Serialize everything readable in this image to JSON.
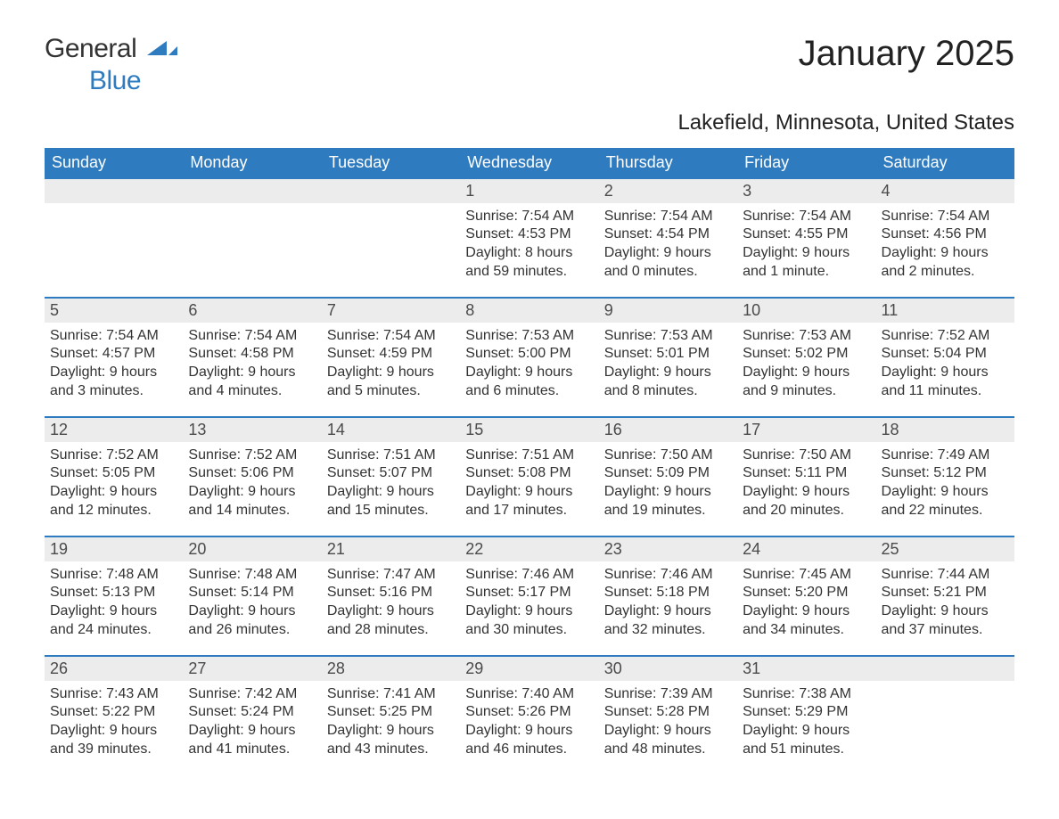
{
  "brand": {
    "word1": "General",
    "word2": "Blue",
    "mark_color": "#2f7bbf"
  },
  "title": "January 2025",
  "location": "Lakefield, Minnesota, United States",
  "colors": {
    "header_bg": "#2f7bbf",
    "header_text": "#ffffff",
    "daynum_bg": "#ececec",
    "daynum_border": "#2f7bbf",
    "body_text": "#333333",
    "page_bg": "#ffffff"
  },
  "typography": {
    "title_fontsize": 40,
    "subtitle_fontsize": 24,
    "header_fontsize": 18,
    "daynum_fontsize": 18,
    "detail_fontsize": 16,
    "font_family": "Arial"
  },
  "calendar": {
    "type": "table",
    "day_headers": [
      "Sunday",
      "Monday",
      "Tuesday",
      "Wednesday",
      "Thursday",
      "Friday",
      "Saturday"
    ],
    "weeks": [
      [
        null,
        null,
        null,
        {
          "day": "1",
          "sunrise": "Sunrise: 7:54 AM",
          "sunset": "Sunset: 4:53 PM",
          "daylight": "Daylight: 8 hours and 59 minutes."
        },
        {
          "day": "2",
          "sunrise": "Sunrise: 7:54 AM",
          "sunset": "Sunset: 4:54 PM",
          "daylight": "Daylight: 9 hours and 0 minutes."
        },
        {
          "day": "3",
          "sunrise": "Sunrise: 7:54 AM",
          "sunset": "Sunset: 4:55 PM",
          "daylight": "Daylight: 9 hours and 1 minute."
        },
        {
          "day": "4",
          "sunrise": "Sunrise: 7:54 AM",
          "sunset": "Sunset: 4:56 PM",
          "daylight": "Daylight: 9 hours and 2 minutes."
        }
      ],
      [
        {
          "day": "5",
          "sunrise": "Sunrise: 7:54 AM",
          "sunset": "Sunset: 4:57 PM",
          "daylight": "Daylight: 9 hours and 3 minutes."
        },
        {
          "day": "6",
          "sunrise": "Sunrise: 7:54 AM",
          "sunset": "Sunset: 4:58 PM",
          "daylight": "Daylight: 9 hours and 4 minutes."
        },
        {
          "day": "7",
          "sunrise": "Sunrise: 7:54 AM",
          "sunset": "Sunset: 4:59 PM",
          "daylight": "Daylight: 9 hours and 5 minutes."
        },
        {
          "day": "8",
          "sunrise": "Sunrise: 7:53 AM",
          "sunset": "Sunset: 5:00 PM",
          "daylight": "Daylight: 9 hours and 6 minutes."
        },
        {
          "day": "9",
          "sunrise": "Sunrise: 7:53 AM",
          "sunset": "Sunset: 5:01 PM",
          "daylight": "Daylight: 9 hours and 8 minutes."
        },
        {
          "day": "10",
          "sunrise": "Sunrise: 7:53 AM",
          "sunset": "Sunset: 5:02 PM",
          "daylight": "Daylight: 9 hours and 9 minutes."
        },
        {
          "day": "11",
          "sunrise": "Sunrise: 7:52 AM",
          "sunset": "Sunset: 5:04 PM",
          "daylight": "Daylight: 9 hours and 11 minutes."
        }
      ],
      [
        {
          "day": "12",
          "sunrise": "Sunrise: 7:52 AM",
          "sunset": "Sunset: 5:05 PM",
          "daylight": "Daylight: 9 hours and 12 minutes."
        },
        {
          "day": "13",
          "sunrise": "Sunrise: 7:52 AM",
          "sunset": "Sunset: 5:06 PM",
          "daylight": "Daylight: 9 hours and 14 minutes."
        },
        {
          "day": "14",
          "sunrise": "Sunrise: 7:51 AM",
          "sunset": "Sunset: 5:07 PM",
          "daylight": "Daylight: 9 hours and 15 minutes."
        },
        {
          "day": "15",
          "sunrise": "Sunrise: 7:51 AM",
          "sunset": "Sunset: 5:08 PM",
          "daylight": "Daylight: 9 hours and 17 minutes."
        },
        {
          "day": "16",
          "sunrise": "Sunrise: 7:50 AM",
          "sunset": "Sunset: 5:09 PM",
          "daylight": "Daylight: 9 hours and 19 minutes."
        },
        {
          "day": "17",
          "sunrise": "Sunrise: 7:50 AM",
          "sunset": "Sunset: 5:11 PM",
          "daylight": "Daylight: 9 hours and 20 minutes."
        },
        {
          "day": "18",
          "sunrise": "Sunrise: 7:49 AM",
          "sunset": "Sunset: 5:12 PM",
          "daylight": "Daylight: 9 hours and 22 minutes."
        }
      ],
      [
        {
          "day": "19",
          "sunrise": "Sunrise: 7:48 AM",
          "sunset": "Sunset: 5:13 PM",
          "daylight": "Daylight: 9 hours and 24 minutes."
        },
        {
          "day": "20",
          "sunrise": "Sunrise: 7:48 AM",
          "sunset": "Sunset: 5:14 PM",
          "daylight": "Daylight: 9 hours and 26 minutes."
        },
        {
          "day": "21",
          "sunrise": "Sunrise: 7:47 AM",
          "sunset": "Sunset: 5:16 PM",
          "daylight": "Daylight: 9 hours and 28 minutes."
        },
        {
          "day": "22",
          "sunrise": "Sunrise: 7:46 AM",
          "sunset": "Sunset: 5:17 PM",
          "daylight": "Daylight: 9 hours and 30 minutes."
        },
        {
          "day": "23",
          "sunrise": "Sunrise: 7:46 AM",
          "sunset": "Sunset: 5:18 PM",
          "daylight": "Daylight: 9 hours and 32 minutes."
        },
        {
          "day": "24",
          "sunrise": "Sunrise: 7:45 AM",
          "sunset": "Sunset: 5:20 PM",
          "daylight": "Daylight: 9 hours and 34 minutes."
        },
        {
          "day": "25",
          "sunrise": "Sunrise: 7:44 AM",
          "sunset": "Sunset: 5:21 PM",
          "daylight": "Daylight: 9 hours and 37 minutes."
        }
      ],
      [
        {
          "day": "26",
          "sunrise": "Sunrise: 7:43 AM",
          "sunset": "Sunset: 5:22 PM",
          "daylight": "Daylight: 9 hours and 39 minutes."
        },
        {
          "day": "27",
          "sunrise": "Sunrise: 7:42 AM",
          "sunset": "Sunset: 5:24 PM",
          "daylight": "Daylight: 9 hours and 41 minutes."
        },
        {
          "day": "28",
          "sunrise": "Sunrise: 7:41 AM",
          "sunset": "Sunset: 5:25 PM",
          "daylight": "Daylight: 9 hours and 43 minutes."
        },
        {
          "day": "29",
          "sunrise": "Sunrise: 7:40 AM",
          "sunset": "Sunset: 5:26 PM",
          "daylight": "Daylight: 9 hours and 46 minutes."
        },
        {
          "day": "30",
          "sunrise": "Sunrise: 7:39 AM",
          "sunset": "Sunset: 5:28 PM",
          "daylight": "Daylight: 9 hours and 48 minutes."
        },
        {
          "day": "31",
          "sunrise": "Sunrise: 7:38 AM",
          "sunset": "Sunset: 5:29 PM",
          "daylight": "Daylight: 9 hours and 51 minutes."
        },
        null
      ]
    ]
  }
}
